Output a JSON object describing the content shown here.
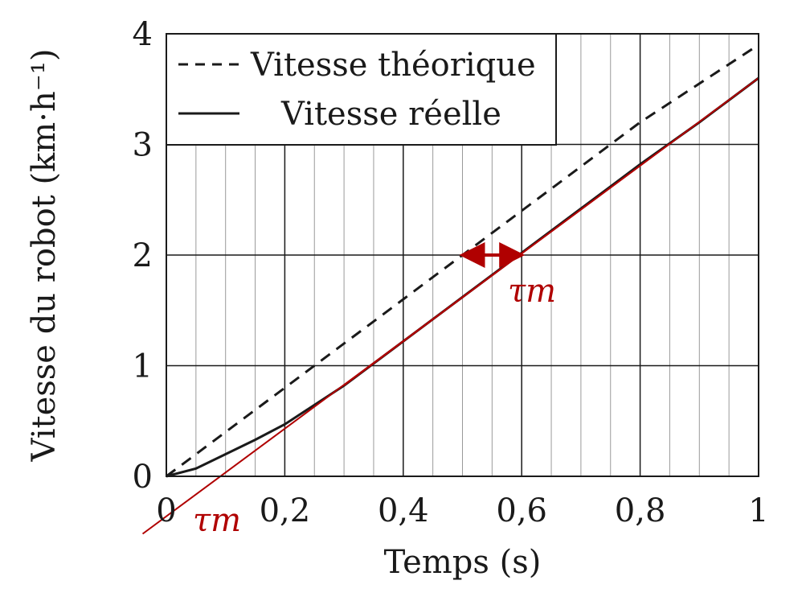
{
  "chart_data": {
    "type": "line",
    "xlabel": "Temps (s)",
    "ylabel": "Vitesse du robot (km·h⁻¹)",
    "xlim": [
      0,
      1
    ],
    "ylim": [
      0,
      4
    ],
    "x_major_ticks": [
      "0",
      "0,2",
      "0,4",
      "0,6",
      "0,8",
      "1"
    ],
    "y_major_ticks": [
      "0",
      "1",
      "2",
      "3",
      "4"
    ],
    "grid": true,
    "legend_position": "top-left",
    "series": [
      {
        "name": "Vitesse théorique",
        "style": "dashed",
        "color": "#1a1a1a",
        "x": [
          0,
          0.2,
          0.4,
          0.6,
          0.8,
          1.0
        ],
        "y": [
          0,
          0.8,
          1.6,
          2.4,
          3.2,
          3.9
        ]
      },
      {
        "name": "Vitesse réelle",
        "style": "solid",
        "color": "#1a1a1a",
        "x": [
          0,
          0.05,
          0.1,
          0.15,
          0.2,
          0.3,
          0.4,
          0.5,
          0.6,
          0.7,
          0.8,
          0.9,
          1.0
        ],
        "y": [
          0,
          0.07,
          0.2,
          0.33,
          0.47,
          0.82,
          1.22,
          1.62,
          2.02,
          2.42,
          2.82,
          3.2,
          3.6
        ]
      }
    ],
    "annotations": {
      "color": "#b00000",
      "tangent_line": {
        "x": [
          -0.04,
          1.0
        ],
        "y": [
          -0.52,
          3.6
        ]
      },
      "arrow": {
        "x1": 0.5,
        "x2": 0.6,
        "y": 2.0
      },
      "label_delay": "τm",
      "label_origin": "τm"
    }
  }
}
